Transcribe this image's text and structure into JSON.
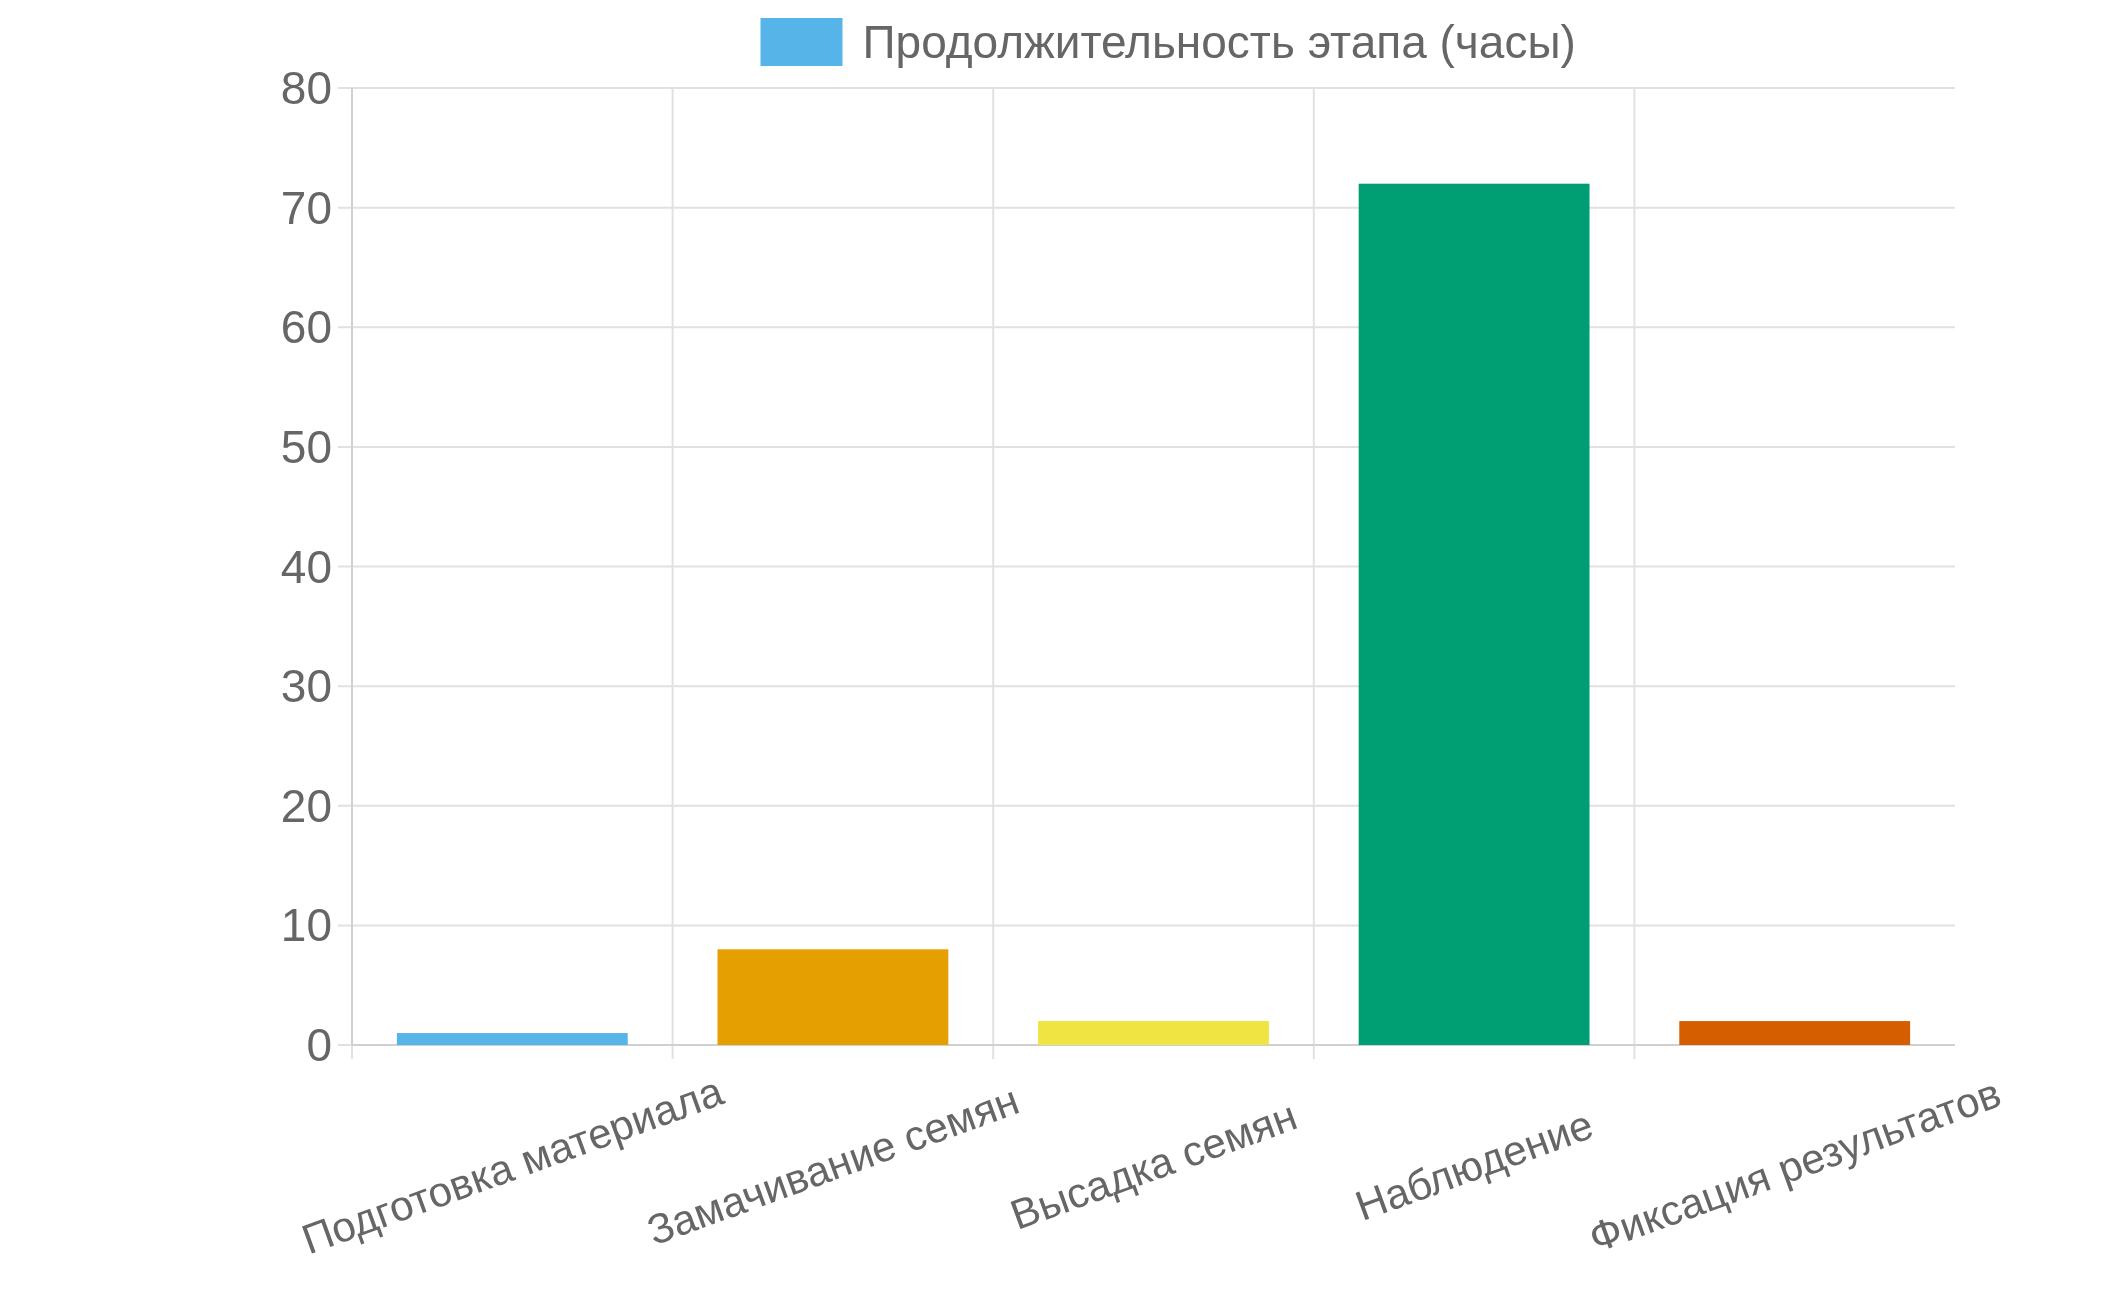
{
  "chart_data": {
    "type": "bar",
    "categories": [
      "Подготовка материала",
      "Замачивание семян",
      "Высадка семян",
      "Наблюдение",
      "Фиксация результатов"
    ],
    "series": [
      {
        "name": "Продолжительность этапа (часы)",
        "color": "#56b4e9",
        "colors": [
          "#56b4e9",
          "#e69f00",
          "#f0e442",
          "#009e73",
          "#d55e00"
        ],
        "values": [
          1,
          8,
          2,
          72,
          2
        ]
      }
    ],
    "ylim": [
      0,
      80
    ],
    "yticks": [
      0,
      10,
      20,
      30,
      40,
      50,
      60,
      70,
      80
    ],
    "grid": true,
    "legend": "top"
  }
}
